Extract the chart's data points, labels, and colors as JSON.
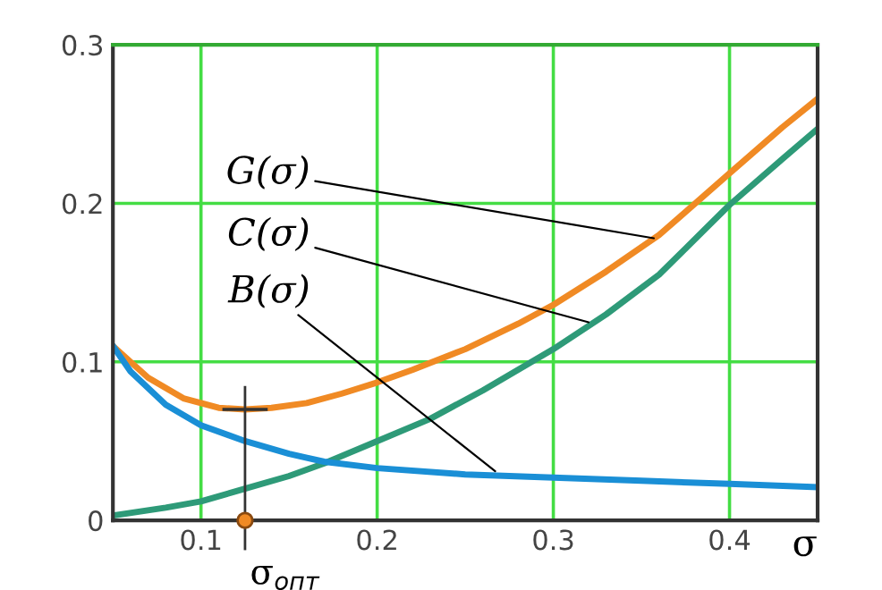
{
  "chart_data": {
    "type": "line",
    "xlabel": "σ",
    "xlim": [
      0.05,
      0.45
    ],
    "xticks": [
      0.1,
      0.2,
      0.3,
      0.4
    ],
    "ylim": [
      0,
      0.3
    ],
    "yticks": [
      0,
      0.1,
      0.2,
      0.3
    ],
    "grid": true,
    "line_style": "solid",
    "series": [
      {
        "color": "#f08a24",
        "x": [
          0.05,
          0.07,
          0.09,
          0.11,
          0.125,
          0.14,
          0.16,
          0.18,
          0.2,
          0.22,
          0.25,
          0.28,
          0.3,
          0.33,
          0.36,
          0.4,
          0.43,
          0.45
        ],
        "values": [
          0.11,
          0.09,
          0.077,
          0.071,
          0.07,
          0.071,
          0.074,
          0.08,
          0.087,
          0.095,
          0.108,
          0.124,
          0.136,
          0.157,
          0.18,
          0.219,
          0.248,
          0.266
        ]
      },
      {
        "color": "#2e9a78",
        "x": [
          0.05,
          0.08,
          0.1,
          0.125,
          0.15,
          0.17,
          0.2,
          0.23,
          0.26,
          0.3,
          0.33,
          0.36,
          0.4,
          0.43,
          0.45
        ],
        "values": [
          0.003,
          0.008,
          0.012,
          0.02,
          0.028,
          0.036,
          0.05,
          0.064,
          0.082,
          0.108,
          0.13,
          0.155,
          0.199,
          0.228,
          0.247
        ]
      },
      {
        "color": "#1a8fd6",
        "x": [
          0.05,
          0.06,
          0.08,
          0.1,
          0.125,
          0.15,
          0.17,
          0.2,
          0.25,
          0.3,
          0.35,
          0.4,
          0.45
        ],
        "values": [
          0.11,
          0.094,
          0.073,
          0.06,
          0.05,
          0.042,
          0.037,
          0.033,
          0.029,
          0.027,
          0.025,
          0.023,
          0.021
        ]
      }
    ],
    "annotations": [
      {
        "text": "G(σ)",
        "x": 0.357,
        "y": 0.178
      },
      {
        "text": "C(σ)",
        "x": 0.32,
        "y": 0.125
      },
      {
        "text": "B(σ)",
        "x": 0.267,
        "y": 0.031
      },
      {
        "text": "σ$_{опт}$",
        "x": 0.125,
        "y": 0
      }
    ],
    "ref_lines": [
      {
        "axis": "x",
        "value": 0.125,
        "color": "#333333"
      }
    ]
  }
}
